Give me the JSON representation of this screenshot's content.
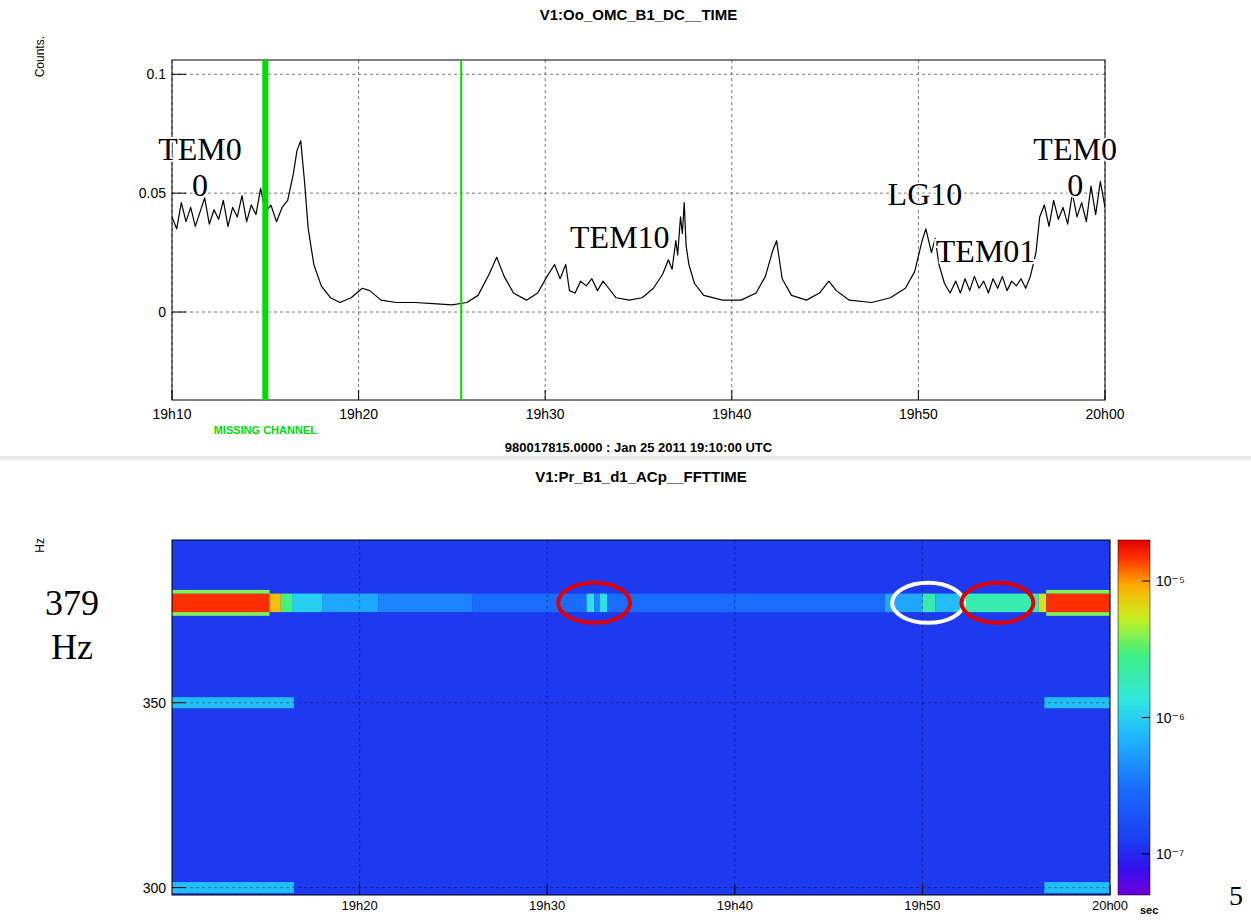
{
  "chart_data": [
    {
      "type": "line",
      "title": "V1:Oo_OMC_B1_DC__TIME",
      "y_label": "Counts.",
      "subtitle": "980017815.0000 : Jan 25 2011 19:10:00 UTC",
      "color": "#000000",
      "grid": true,
      "xlim": [
        10,
        60
      ],
      "xticks": [
        {
          "value": 10,
          "label": "19h10"
        },
        {
          "value": 20,
          "label": "19h20"
        },
        {
          "value": 30,
          "label": "19h30"
        },
        {
          "value": 40,
          "label": "19h40"
        },
        {
          "value": 50,
          "label": "19h50"
        },
        {
          "value": 60,
          "label": "20h00"
        }
      ],
      "ylim": [
        -0.037,
        0.106
      ],
      "yticks": [
        0,
        0.05,
        0.1
      ],
      "x": [
        10,
        10.25,
        10.5,
        10.75,
        11,
        11.25,
        11.5,
        11.75,
        12,
        12.25,
        12.5,
        12.75,
        13,
        13.25,
        13.5,
        13.75,
        14,
        14.25,
        14.5,
        14.75,
        15,
        15.3,
        15.6,
        15.9,
        16.2,
        16.5,
        16.7,
        16.9,
        17.1,
        17.3,
        17.6,
        18,
        18.5,
        19,
        19.6,
        20.2,
        20.6,
        21.2,
        22,
        23,
        24,
        25,
        25.8,
        26.4,
        27,
        27.4,
        27.8,
        28.3,
        29,
        29.6,
        30.1,
        30.5,
        30.8,
        31.1,
        31.3,
        31.6,
        31.9,
        32.2,
        32.5,
        32.8,
        33.1,
        33.4,
        33.8,
        34.5,
        35.2,
        35.8,
        36.3,
        36.6,
        36.8,
        37,
        37.1,
        37.25,
        37.35,
        37.45,
        37.55,
        37.7,
        38,
        38.5,
        39.5,
        40.5,
        41.3,
        41.8,
        42.2,
        42.4,
        42.7,
        43.2,
        44,
        44.7,
        45.2,
        45.6,
        46.3,
        47.5,
        48.5,
        49.3,
        49.8,
        50.2,
        50.4,
        50.7,
        50.9,
        51.1,
        51.4,
        51.7,
        52,
        52.25,
        52.5,
        52.75,
        53,
        53.25,
        53.5,
        53.75,
        54,
        54.25,
        54.5,
        54.75,
        55,
        55.25,
        55.5,
        55.75,
        56,
        56.3,
        56.5,
        56.75,
        57,
        57.25,
        57.5,
        57.75,
        58,
        58.25,
        58.5,
        58.75,
        59,
        59.25,
        59.5,
        59.75,
        60
      ],
      "values": [
        0.04,
        0.035,
        0.046,
        0.038,
        0.044,
        0.036,
        0.042,
        0.048,
        0.037,
        0.043,
        0.039,
        0.047,
        0.036,
        0.044,
        0.04,
        0.049,
        0.038,
        0.045,
        0.041,
        0.052,
        0.042,
        0.045,
        0.038,
        0.044,
        0.047,
        0.058,
        0.068,
        0.072,
        0.055,
        0.035,
        0.02,
        0.011,
        0.006,
        0.004,
        0.006,
        0.01,
        0.009,
        0.005,
        0.004,
        0.004,
        0.0035,
        0.003,
        0.004,
        0.007,
        0.016,
        0.023,
        0.015,
        0.008,
        0.005,
        0.008,
        0.015,
        0.02,
        0.014,
        0.02,
        0.009,
        0.008,
        0.013,
        0.011,
        0.014,
        0.009,
        0.013,
        0.01,
        0.006,
        0.005,
        0.006,
        0.01,
        0.016,
        0.022,
        0.018,
        0.03,
        0.024,
        0.04,
        0.033,
        0.046,
        0.028,
        0.02,
        0.012,
        0.007,
        0.005,
        0.005,
        0.008,
        0.015,
        0.026,
        0.03,
        0.014,
        0.007,
        0.005,
        0.008,
        0.013,
        0.009,
        0.005,
        0.004,
        0.006,
        0.01,
        0.017,
        0.03,
        0.035,
        0.025,
        0.031,
        0.02,
        0.012,
        0.008,
        0.013,
        0.008,
        0.014,
        0.009,
        0.015,
        0.01,
        0.013,
        0.008,
        0.014,
        0.01,
        0.015,
        0.009,
        0.013,
        0.011,
        0.014,
        0.01,
        0.015,
        0.025,
        0.04,
        0.045,
        0.036,
        0.047,
        0.039,
        0.044,
        0.037,
        0.05,
        0.04,
        0.046,
        0.038,
        0.053,
        0.041,
        0.055,
        0.044
      ],
      "missing_channel": {
        "label": "MISSING CHANNEL",
        "x": [
          15,
          25.5
        ],
        "color": "#00dd00"
      },
      "annotations": [
        {
          "text": [
            "TEM0",
            "0"
          ],
          "x": 11.5,
          "y": 0.064
        },
        {
          "text": [
            "TEM10"
          ],
          "x": 34.0,
          "y": 0.027
        },
        {
          "text": [
            "LG10"
          ],
          "x": 50.35,
          "y": 0.045
        },
        {
          "text": [
            "TEM01"
          ],
          "x": 53.6,
          "y": 0.021
        },
        {
          "text": [
            "TEM0",
            "0"
          ],
          "x": 58.4,
          "y": 0.064
        }
      ]
    },
    {
      "type": "heatmap",
      "title": "V1:Pr_B1_d1_ACp__FFTTIME",
      "y_label": "Hz",
      "x_label": "sec",
      "grid": true,
      "xlim": [
        10,
        60
      ],
      "xticks": [
        {
          "value": 20,
          "label": "19h20"
        },
        {
          "value": 30,
          "label": "19h30"
        },
        {
          "value": 40,
          "label": "19h40"
        },
        {
          "value": 50,
          "label": "19h50"
        },
        {
          "value": 60,
          "label": "20h00"
        }
      ],
      "ylim": [
        298,
        394
      ],
      "yticks": [
        300,
        350
      ],
      "background_value": 1.2e-07,
      "colorbar": {
        "range": [
          5e-08,
          2e-05
        ],
        "log": true,
        "ticks": [
          {
            "value": 1e-07,
            "label": "10⁻⁷"
          },
          {
            "value": 1e-06,
            "label": "10⁻⁶"
          },
          {
            "value": 1e-05,
            "label": "10⁻⁵"
          }
        ]
      },
      "cells": [
        {
          "t": [
            10,
            15.2
          ],
          "f": [
            374.5,
            379.5
          ],
          "value": 1.5e-05
        },
        {
          "t": [
            10,
            15.2
          ],
          "f": [
            373.5,
            374.5
          ],
          "value": 4e-06
        },
        {
          "t": [
            10,
            15.2
          ],
          "f": [
            379.5,
            380.5
          ],
          "value": 4e-06
        },
        {
          "t": [
            15.2,
            15.8
          ],
          "f": [
            374.5,
            379.5
          ],
          "value": 8e-06
        },
        {
          "t": [
            15.8,
            16.4
          ],
          "f": [
            374.5,
            379.5
          ],
          "value": 3e-06
        },
        {
          "t": [
            16.4,
            18
          ],
          "f": [
            374.5,
            379.5
          ],
          "value": 1e-06
        },
        {
          "t": [
            18,
            21
          ],
          "f": [
            374.5,
            379.5
          ],
          "value": 6e-07
        },
        {
          "t": [
            21,
            26
          ],
          "f": [
            374.5,
            379.5
          ],
          "value": 4e-07
        },
        {
          "t": [
            26,
            32.1
          ],
          "f": [
            374.5,
            379.5
          ],
          "value": 3e-07
        },
        {
          "t": [
            32.1,
            32.5
          ],
          "f": [
            374.5,
            379.5
          ],
          "value": 1.2e-06
        },
        {
          "t": [
            32.5,
            32.8
          ],
          "f": [
            374.5,
            379.5
          ],
          "value": 4e-07
        },
        {
          "t": [
            32.8,
            33.2
          ],
          "f": [
            374.5,
            379.5
          ],
          "value": 1.2e-06
        },
        {
          "t": [
            33.2,
            48
          ],
          "f": [
            374.5,
            379.5
          ],
          "value": 3e-07
        },
        {
          "t": [
            48,
            50
          ],
          "f": [
            374.5,
            379.5
          ],
          "value": 6e-07
        },
        {
          "t": [
            50,
            50.7
          ],
          "f": [
            374.5,
            379.5
          ],
          "value": 2e-06
        },
        {
          "t": [
            50.7,
            52
          ],
          "f": [
            374.5,
            379.5
          ],
          "value": 8e-07
        },
        {
          "t": [
            52,
            56.2
          ],
          "f": [
            374.5,
            379.5
          ],
          "value": 2e-06
        },
        {
          "t": [
            56.2,
            56.6
          ],
          "f": [
            374.5,
            379.5
          ],
          "value": 6e-06
        },
        {
          "t": [
            56.6,
            60
          ],
          "f": [
            374.5,
            379.5
          ],
          "value": 1.5e-05
        },
        {
          "t": [
            56.6,
            60
          ],
          "f": [
            373.5,
            374.5
          ],
          "value": 4e-06
        },
        {
          "t": [
            56.6,
            60
          ],
          "f": [
            379.5,
            380.5
          ],
          "value": 4e-06
        },
        {
          "t": [
            10,
            16.5
          ],
          "f": [
            348.5,
            351.5
          ],
          "value": 8e-07
        },
        {
          "t": [
            56.5,
            60
          ],
          "f": [
            348.5,
            351.5
          ],
          "value": 8e-07
        },
        {
          "t": [
            10,
            16.5
          ],
          "f": [
            298.5,
            301.5
          ],
          "value": 8e-07
        },
        {
          "t": [
            56.5,
            60
          ],
          "f": [
            298.5,
            301.5
          ],
          "value": 8e-07
        }
      ],
      "highlights": [
        {
          "x": 32.5,
          "y": 377,
          "color": "#e00000"
        },
        {
          "x": 50.3,
          "y": 377,
          "color": "#ffffff"
        },
        {
          "x": 54,
          "y": 377,
          "color": "#e00000"
        }
      ],
      "annotations": [
        {
          "text": [
            "379",
            "Hz"
          ],
          "y": 377
        }
      ]
    }
  ],
  "page_number": "5"
}
